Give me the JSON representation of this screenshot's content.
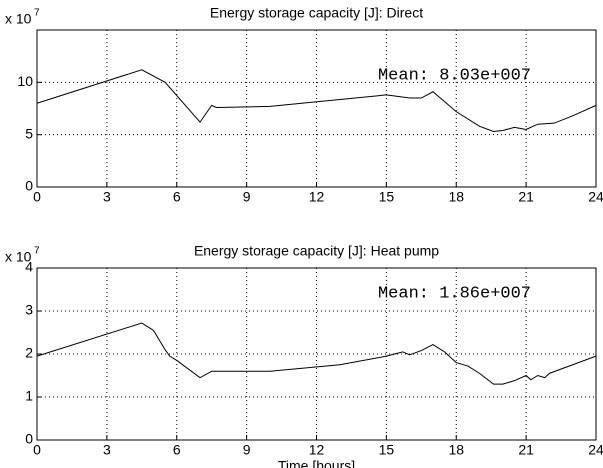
{
  "chart_data": [
    {
      "type": "line",
      "title": "Energy storage capacity [J]: Direct",
      "y_multiplier": "x 10",
      "y_exponent": "7",
      "annotation": "Mean: 8.03e+007",
      "x": [
        0,
        4.5,
        5.5,
        7,
        7.5,
        7.7,
        10,
        15,
        16,
        16.5,
        17,
        18,
        19,
        19.6,
        20,
        20.5,
        21,
        21.5,
        22.2,
        23,
        24
      ],
      "values": [
        8.0,
        11.2,
        10.0,
        6.2,
        7.8,
        7.6,
        7.7,
        8.8,
        8.5,
        8.5,
        9.1,
        7.2,
        5.8,
        5.3,
        5.4,
        5.7,
        5.5,
        6.0,
        6.1,
        6.8,
        7.8
      ],
      "color": "#000000",
      "xlim": [
        0,
        24
      ],
      "xticks": [
        0,
        3,
        6,
        9,
        12,
        15,
        18,
        21,
        24
      ],
      "ylim": [
        0,
        15
      ],
      "yticks": [
        0,
        5,
        10
      ],
      "grid": true
    },
    {
      "type": "line",
      "title": "Energy storage capacity [J]: Heat pump",
      "y_multiplier": "x 10",
      "y_exponent": "7",
      "annotation": "Mean: 1.86e+007",
      "x_label": "Time [hours]",
      "x": [
        0,
        4.5,
        5,
        5.5,
        5.7,
        6,
        7,
        7.5,
        10,
        13,
        15,
        15.5,
        15.7,
        16,
        16.5,
        17,
        17.5,
        18,
        18.5,
        19,
        19.6,
        20,
        20.5,
        21,
        21.2,
        21.5,
        21.8,
        22,
        23,
        24
      ],
      "values": [
        1.95,
        2.72,
        2.55,
        2.1,
        1.95,
        1.85,
        1.45,
        1.6,
        1.6,
        1.75,
        1.95,
        2.02,
        2.05,
        1.98,
        2.08,
        2.22,
        2.05,
        1.8,
        1.72,
        1.55,
        1.3,
        1.3,
        1.38,
        1.5,
        1.4,
        1.5,
        1.45,
        1.55,
        1.75,
        1.95
      ],
      "color": "#000000",
      "xlim": [
        0,
        24
      ],
      "xticks": [
        0,
        3,
        6,
        9,
        12,
        15,
        18,
        21,
        24
      ],
      "ylim": [
        0,
        4
      ],
      "yticks": [
        0,
        1,
        2,
        3,
        4
      ],
      "grid": true
    }
  ]
}
